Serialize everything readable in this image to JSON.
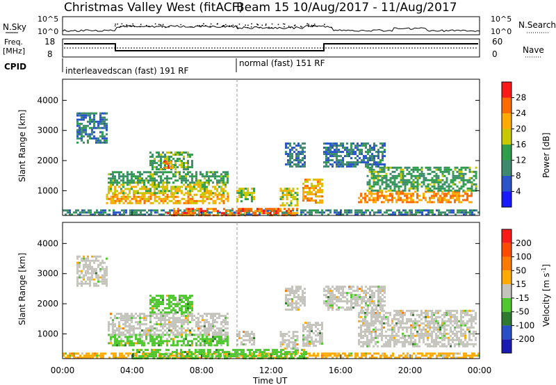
{
  "header": {
    "station": "Christmas Valley West (fitACF)",
    "beam_date": "Beam 15  10/Aug/2017 - 11/Aug/2017"
  },
  "top_panels": {
    "nsky_label": "N.Sky",
    "nsky_ticks": [
      "10^5",
      "10^0"
    ],
    "nsearch_label": "N.Search",
    "freq_label": "Freq.",
    "freq_unit": "[MHz]",
    "freq_ticks": [
      "18",
      "8"
    ],
    "nave_label": "Nave",
    "nave_ticks": [
      "60",
      "0"
    ],
    "cpid_label": "CPID",
    "cpid_segments": [
      {
        "label": "interleavedscan (fast) 191 RF",
        "start_hour": 0,
        "end_hour": 10
      },
      {
        "label": "normal (fast) 151 RF",
        "start_hour": 10,
        "end_hour": 24
      }
    ]
  },
  "colors": {
    "power": [
      "#1a1aff",
      "#2a55c8",
      "#3e8a6e",
      "#2e9e4a",
      "#c8c800",
      "#ffaa00",
      "#ff6a00",
      "#ff1a1a"
    ],
    "velocity": [
      "#1a1ab4",
      "#2a50c8",
      "#2e7a2e",
      "#4ec82e",
      "#c4c4bc",
      "#ffaa00",
      "#ff7a00",
      "#ff4a00",
      "#ff1a1a"
    ]
  },
  "power_colorbar": {
    "label": "Power [dB]",
    "ticks": [
      "28",
      "24",
      "20",
      "16",
      "12",
      "8",
      "4"
    ]
  },
  "velocity_colorbar": {
    "label": "Velocity [m s",
    "label_sup": "-1",
    "label_end": "]",
    "ticks": [
      "200",
      "100",
      "50",
      "15",
      "-15",
      "-50",
      "-100",
      "-200"
    ]
  },
  "chart_data": [
    {
      "type": "heatmap",
      "title": "Power",
      "xlabel": "Time UT",
      "ylabel": "Slant Range [km]",
      "x_ticks": [
        "00:00",
        "04:00",
        "08:00",
        "12:00",
        "16:00",
        "20:00",
        "00:00"
      ],
      "x_range_hours": [
        0,
        24
      ],
      "y_ticks": [
        "1000",
        "2000",
        "3000",
        "4000"
      ],
      "y_range_km": [
        180,
        4700
      ],
      "color_range_db": [
        0,
        32
      ],
      "bands": [
        {
          "t0": 0.0,
          "t1": 24.0,
          "r0": 220,
          "r1": 380,
          "v": 10
        },
        {
          "t0": 6.0,
          "t1": 13.5,
          "r0": 220,
          "r1": 430,
          "v": 26
        },
        {
          "t0": 2.5,
          "t1": 9.5,
          "r0": 600,
          "r1": 900,
          "v": 22
        },
        {
          "t0": 2.6,
          "t1": 9.5,
          "r0": 900,
          "r1": 1300,
          "v": 18
        },
        {
          "t0": 2.6,
          "t1": 9.5,
          "r0": 1300,
          "r1": 1650,
          "v": 13
        },
        {
          "t0": 5.0,
          "t1": 7.5,
          "r0": 1700,
          "r1": 2300,
          "v": 14
        },
        {
          "t0": 5.8,
          "t1": 6.4,
          "r0": 1750,
          "r1": 2000,
          "v": 26
        },
        {
          "t0": 10.0,
          "t1": 11.0,
          "r0": 650,
          "r1": 1100,
          "v": 17
        },
        {
          "t0": 0.8,
          "t1": 2.5,
          "r0": 2600,
          "r1": 3600,
          "v": 9
        },
        {
          "t0": 12.5,
          "t1": 13.5,
          "r0": 500,
          "r1": 1100,
          "v": 18
        },
        {
          "t0": 13.8,
          "t1": 15.0,
          "r0": 600,
          "r1": 1400,
          "v": 22
        },
        {
          "t0": 15.0,
          "t1": 18.5,
          "r0": 1800,
          "r1": 2600,
          "v": 9
        },
        {
          "t0": 17.0,
          "t1": 23.5,
          "r0": 600,
          "r1": 1000,
          "v": 24
        },
        {
          "t0": 17.5,
          "t1": 23.8,
          "r0": 1000,
          "r1": 1800,
          "v": 13
        },
        {
          "t0": 12.8,
          "t1": 14.0,
          "r0": 1800,
          "r1": 2600,
          "v": 8
        }
      ]
    },
    {
      "type": "heatmap",
      "title": "Velocity",
      "xlabel": "Time UT",
      "ylabel": "Slant Range [km]",
      "x_ticks": [
        "00:00",
        "04:00",
        "08:00",
        "12:00",
        "16:00",
        "20:00",
        "00:00"
      ],
      "x_range_hours": [
        0,
        24
      ],
      "y_ticks": [
        "1000",
        "2000",
        "3000",
        "4000"
      ],
      "y_range_km": [
        180,
        4700
      ],
      "color_range_ms": [
        -250,
        250
      ],
      "bands": [
        {
          "t0": 0.0,
          "t1": 24.0,
          "r0": 220,
          "r1": 380,
          "v": 30
        },
        {
          "t0": 4.0,
          "t1": 14.0,
          "r0": 220,
          "r1": 500,
          "v": -40
        },
        {
          "t0": 2.6,
          "t1": 9.5,
          "r0": 600,
          "r1": 1000,
          "v": -40
        },
        {
          "t0": 2.6,
          "t1": 9.5,
          "r0": 1000,
          "r1": 1700,
          "v": 0
        },
        {
          "t0": 5.0,
          "t1": 7.5,
          "r0": 1700,
          "r1": 2300,
          "v": -30
        },
        {
          "t0": 0.8,
          "t1": 2.5,
          "r0": 2600,
          "r1": 3600,
          "v": 0
        },
        {
          "t0": 10.0,
          "t1": 11.0,
          "r0": 650,
          "r1": 1100,
          "v": 0
        },
        {
          "t0": 12.5,
          "t1": 13.5,
          "r0": 500,
          "r1": 1100,
          "v": 0
        },
        {
          "t0": 13.8,
          "t1": 15.0,
          "r0": 600,
          "r1": 1400,
          "v": 0
        },
        {
          "t0": 15.0,
          "t1": 18.5,
          "r0": 1800,
          "r1": 2600,
          "v": 0
        },
        {
          "t0": 17.0,
          "t1": 23.8,
          "r0": 600,
          "r1": 1800,
          "v": 0
        },
        {
          "t0": 12.8,
          "t1": 14.0,
          "r0": 1800,
          "r1": 2600,
          "v": 0
        }
      ]
    }
  ]
}
